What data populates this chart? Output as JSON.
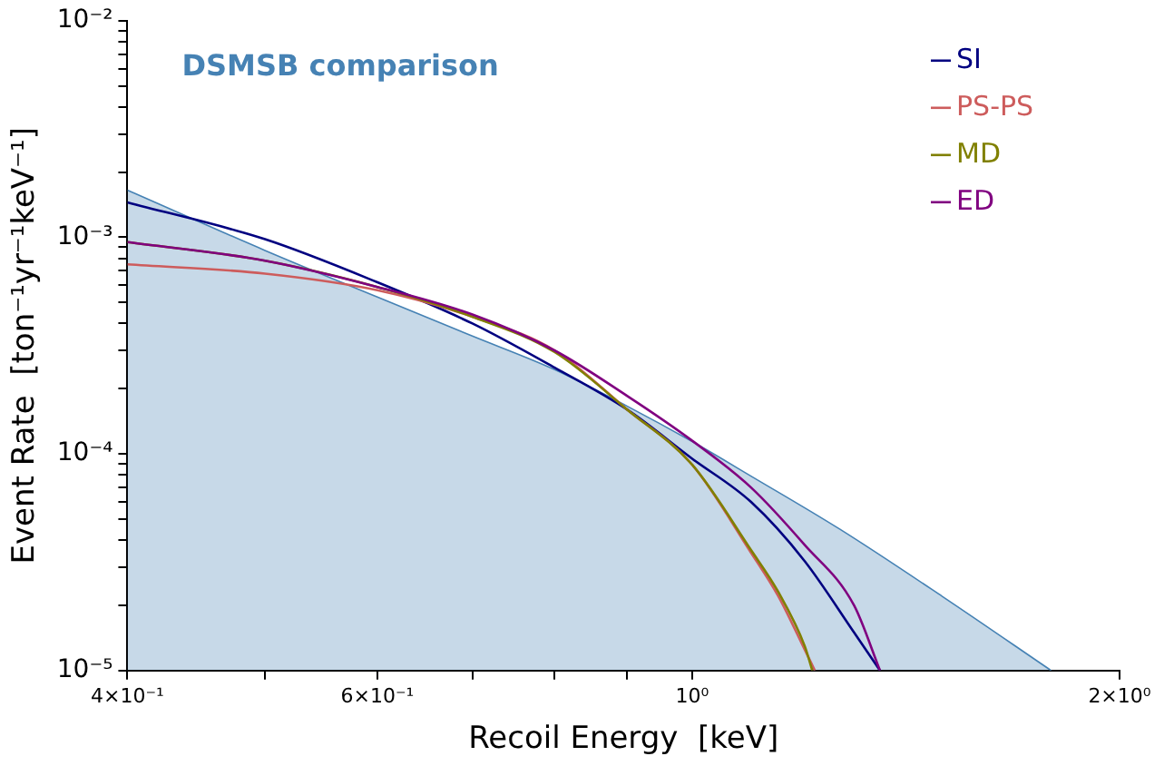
{
  "chart_data": {
    "type": "line",
    "annotations": [
      "DSMSB comparison"
    ],
    "xlabel": "Recoil Energy  [keV]",
    "ylabel": "Event Rate  [ton⁻¹yr⁻¹keV⁻¹]",
    "log": "xy",
    "grid": false,
    "legend": "top right",
    "marker": "none",
    "line_style": "solid",
    "xlim": [
      0.4,
      2
    ],
    "xticks": [
      {
        "value": 0.4,
        "label": "4×10⁻¹"
      },
      {
        "value": 0.5,
        "label": null
      },
      {
        "value": 0.6,
        "label": "6×10⁻¹"
      },
      {
        "value": 0.7,
        "label": null
      },
      {
        "value": 0.8,
        "label": null
      },
      {
        "value": 0.9,
        "label": null
      },
      {
        "value": 1,
        "label": "10⁰"
      },
      {
        "value": 2,
        "label": "2×10⁰"
      }
    ],
    "ylim": [
      1e-05,
      0.01
    ],
    "yticks": [
      {
        "value": 1e-05,
        "label": "10⁻⁵"
      },
      {
        "value": 2e-05,
        "label": null
      },
      {
        "value": 3e-05,
        "label": null
      },
      {
        "value": 4e-05,
        "label": null
      },
      {
        "value": 5e-05,
        "label": null
      },
      {
        "value": 6e-05,
        "label": null
      },
      {
        "value": 7e-05,
        "label": null
      },
      {
        "value": 8e-05,
        "label": null
      },
      {
        "value": 9e-05,
        "label": null
      },
      {
        "value": 0.0001,
        "label": "10⁻⁴"
      },
      {
        "value": 0.0002,
        "label": null
      },
      {
        "value": 0.0003,
        "label": null
      },
      {
        "value": 0.0004,
        "label": null
      },
      {
        "value": 0.0005,
        "label": null
      },
      {
        "value": 0.0006,
        "label": null
      },
      {
        "value": 0.0007,
        "label": null
      },
      {
        "value": 0.0008,
        "label": null
      },
      {
        "value": 0.0009,
        "label": null
      },
      {
        "value": 0.001,
        "label": "10⁻³"
      },
      {
        "value": 0.002,
        "label": null
      },
      {
        "value": 0.003,
        "label": null
      },
      {
        "value": 0.004,
        "label": null
      },
      {
        "value": 0.005,
        "label": null
      },
      {
        "value": 0.006,
        "label": null
      },
      {
        "value": 0.007,
        "label": null
      },
      {
        "value": 0.008,
        "label": null
      },
      {
        "value": 0.009,
        "label": null
      },
      {
        "value": 0.01,
        "label": "10⁻²"
      }
    ],
    "series": [
      {
        "type": "area",
        "color": "#4682b4",
        "x": [
          0.4,
          0.5,
          0.6,
          0.7,
          0.8,
          0.9,
          1.0,
          1.1,
          1.27,
          1.5,
          1.79
        ],
        "values": [
          0.00165,
          0.00087,
          0.00053,
          0.00035,
          0.000245,
          0.000166,
          0.000114,
          7.9e-05,
          4.5e-05,
          2.2e-05,
          1e-05
        ]
      },
      {
        "name": "SI",
        "type": "line",
        "color": "#000080",
        "x": [
          0.4,
          0.5,
          0.6,
          0.7,
          0.8,
          0.9,
          1.0,
          1.1,
          1.2,
          1.3,
          1.356
        ],
        "values": [
          0.00145,
          0.00098,
          0.00062,
          0.0004,
          0.00025,
          0.00016,
          9.5e-05,
          6e-05,
          3.2e-05,
          1.5e-05,
          1e-05
        ]
      },
      {
        "name": "PS-PS",
        "type": "line",
        "color": "#cd5c5c",
        "x": [
          0.4,
          0.5,
          0.6,
          0.7,
          0.8,
          0.9,
          1.0,
          1.1,
          1.15,
          1.2,
          1.22
        ],
        "values": [
          0.00075,
          0.00068,
          0.00057,
          0.00043,
          0.0003,
          0.00016,
          8.9e-05,
          3.5e-05,
          2.2e-05,
          1.25e-05,
          1e-05
        ]
      },
      {
        "name": "MD",
        "type": "line",
        "color": "#808000",
        "x": [
          0.4,
          0.5,
          0.6,
          0.7,
          0.8,
          0.9,
          1.0,
          1.1,
          1.15,
          1.2,
          1.215
        ],
        "values": [
          0.00095,
          0.00078,
          0.00059,
          0.00043,
          0.000295,
          0.00016,
          8.9e-05,
          3.6e-05,
          2.3e-05,
          1.3e-05,
          1e-05
        ]
      },
      {
        "name": "ED",
        "type": "line",
        "color": "#800080",
        "x": [
          0.4,
          0.5,
          0.6,
          0.7,
          0.8,
          0.9,
          1.0,
          1.1,
          1.2,
          1.3,
          1.356
        ],
        "values": [
          0.00095,
          0.00078,
          0.00059,
          0.00044,
          0.0003,
          0.000185,
          0.000115,
          7e-05,
          3.8e-05,
          2e-05,
          1e-05
        ]
      }
    ]
  }
}
